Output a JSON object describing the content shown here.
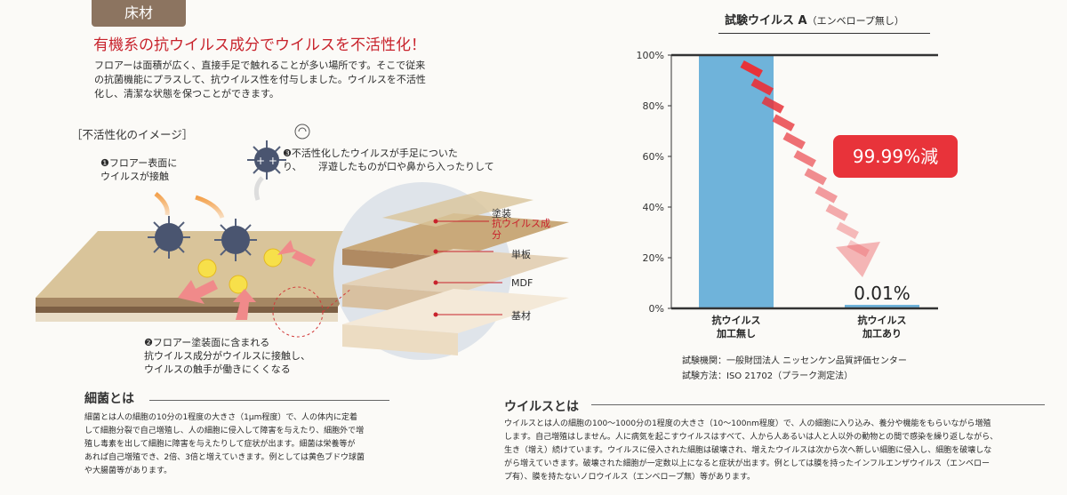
{
  "tag": "床材",
  "headline": "有機系の抗ウイルス成分でウイルスを不活性化！",
  "intro": [
    "フロアーは面積が広く、直接手足で触れることが多い場所です。そこで従来",
    "の抗菌機能にプラスして、抗ウイルス性を付与しました。ウイルスを不活性",
    "化し、清潔な状態を保つことができます。"
  ],
  "illustration": {
    "title": "［不活性化のイメージ］",
    "callout1": [
      "❶フロアー表面に",
      "ウイルスが接触"
    ],
    "callout2": [
      "❷フロアー塗装面に含まれる",
      "抗ウイルス成分がウイルスに接触し、",
      "ウイルスの触手が働きにくくなる"
    ],
    "callout3": [
      "❸不活性化したウイルスが手足についた",
      "り、",
      "浮遊したものが口や鼻から入ったりして"
    ],
    "layers": {
      "coating": "塗装",
      "antiviral_line1": "抗ウイルス成",
      "antiviral_line2": "分",
      "veneer": "単板",
      "mdf": "MDF",
      "base": "基材"
    }
  },
  "bacteria": {
    "heading": "細菌とは",
    "text": [
      "細菌とは人の細胞の10分の1程度の大きさ（1μm程度）で、人の体内に定着",
      "して細胞分裂で自己増殖し、人の細胞に侵入して障害を与えたり、細胞外で増",
      "殖し毒素を出して細胞に障害を与えたりして症状が出ます。細菌は栄養等が",
      "あれば自己増殖でき、2倍、3倍と増えていきます。例としては黄色ブドウ球菌",
      "や大腸菌等があります。"
    ]
  },
  "virus": {
    "heading": "ウイルスとは",
    "text": [
      "ウイルスとは人の細胞の100〜1000分の1程度の大きさ（10〜100nm程度）で、人の細胞に入り込み、養分や機能をもらいながら増殖",
      "します。自己増殖はしません。人に病気を起こすウイルスはすべて、人から人あるいは人と人以外の動物との間で感染を繰り返しながら、",
      "生き（増え）続けています。ウイルスに侵入された細胞は破壊され、増えたウイルスは次から次へ新しい細胞に侵入し、細胞を破壊しな",
      "がら増えていきます。破壊された細胞が一定数以上になると症状が出ます。例としては膜を持ったインフルエンザウイルス（エンベロー",
      "プ有）、膜を持たないノロウイルス（エンベロープ無）等があります。"
    ]
  },
  "chart_data": {
    "type": "bar",
    "title": "試験ウイルス A",
    "subtitle": "（エンベロープ無し）",
    "categories": [
      "抗ウイルス\n加工無し",
      "抗ウイルス\n加工あり"
    ],
    "category_lines": [
      [
        "抗ウイルス",
        "加工無し"
      ],
      [
        "抗ウイルス",
        "加工あり"
      ]
    ],
    "values": [
      100,
      0.01
    ],
    "ylim": [
      0,
      100
    ],
    "yticks": [
      "0%",
      "20%",
      "40%",
      "60%",
      "80%",
      "100%"
    ],
    "data_labels": [
      "",
      "0.01%"
    ],
    "reduction_label": "99.99%減",
    "bar_color": "#6fb3da",
    "arrow_color": "#e8333a"
  },
  "test_info": [
    "試験機関：一般財団法人 ニッセンケン品質評価センター",
    "試験方法：ISO 21702（プラーク測定法）"
  ]
}
